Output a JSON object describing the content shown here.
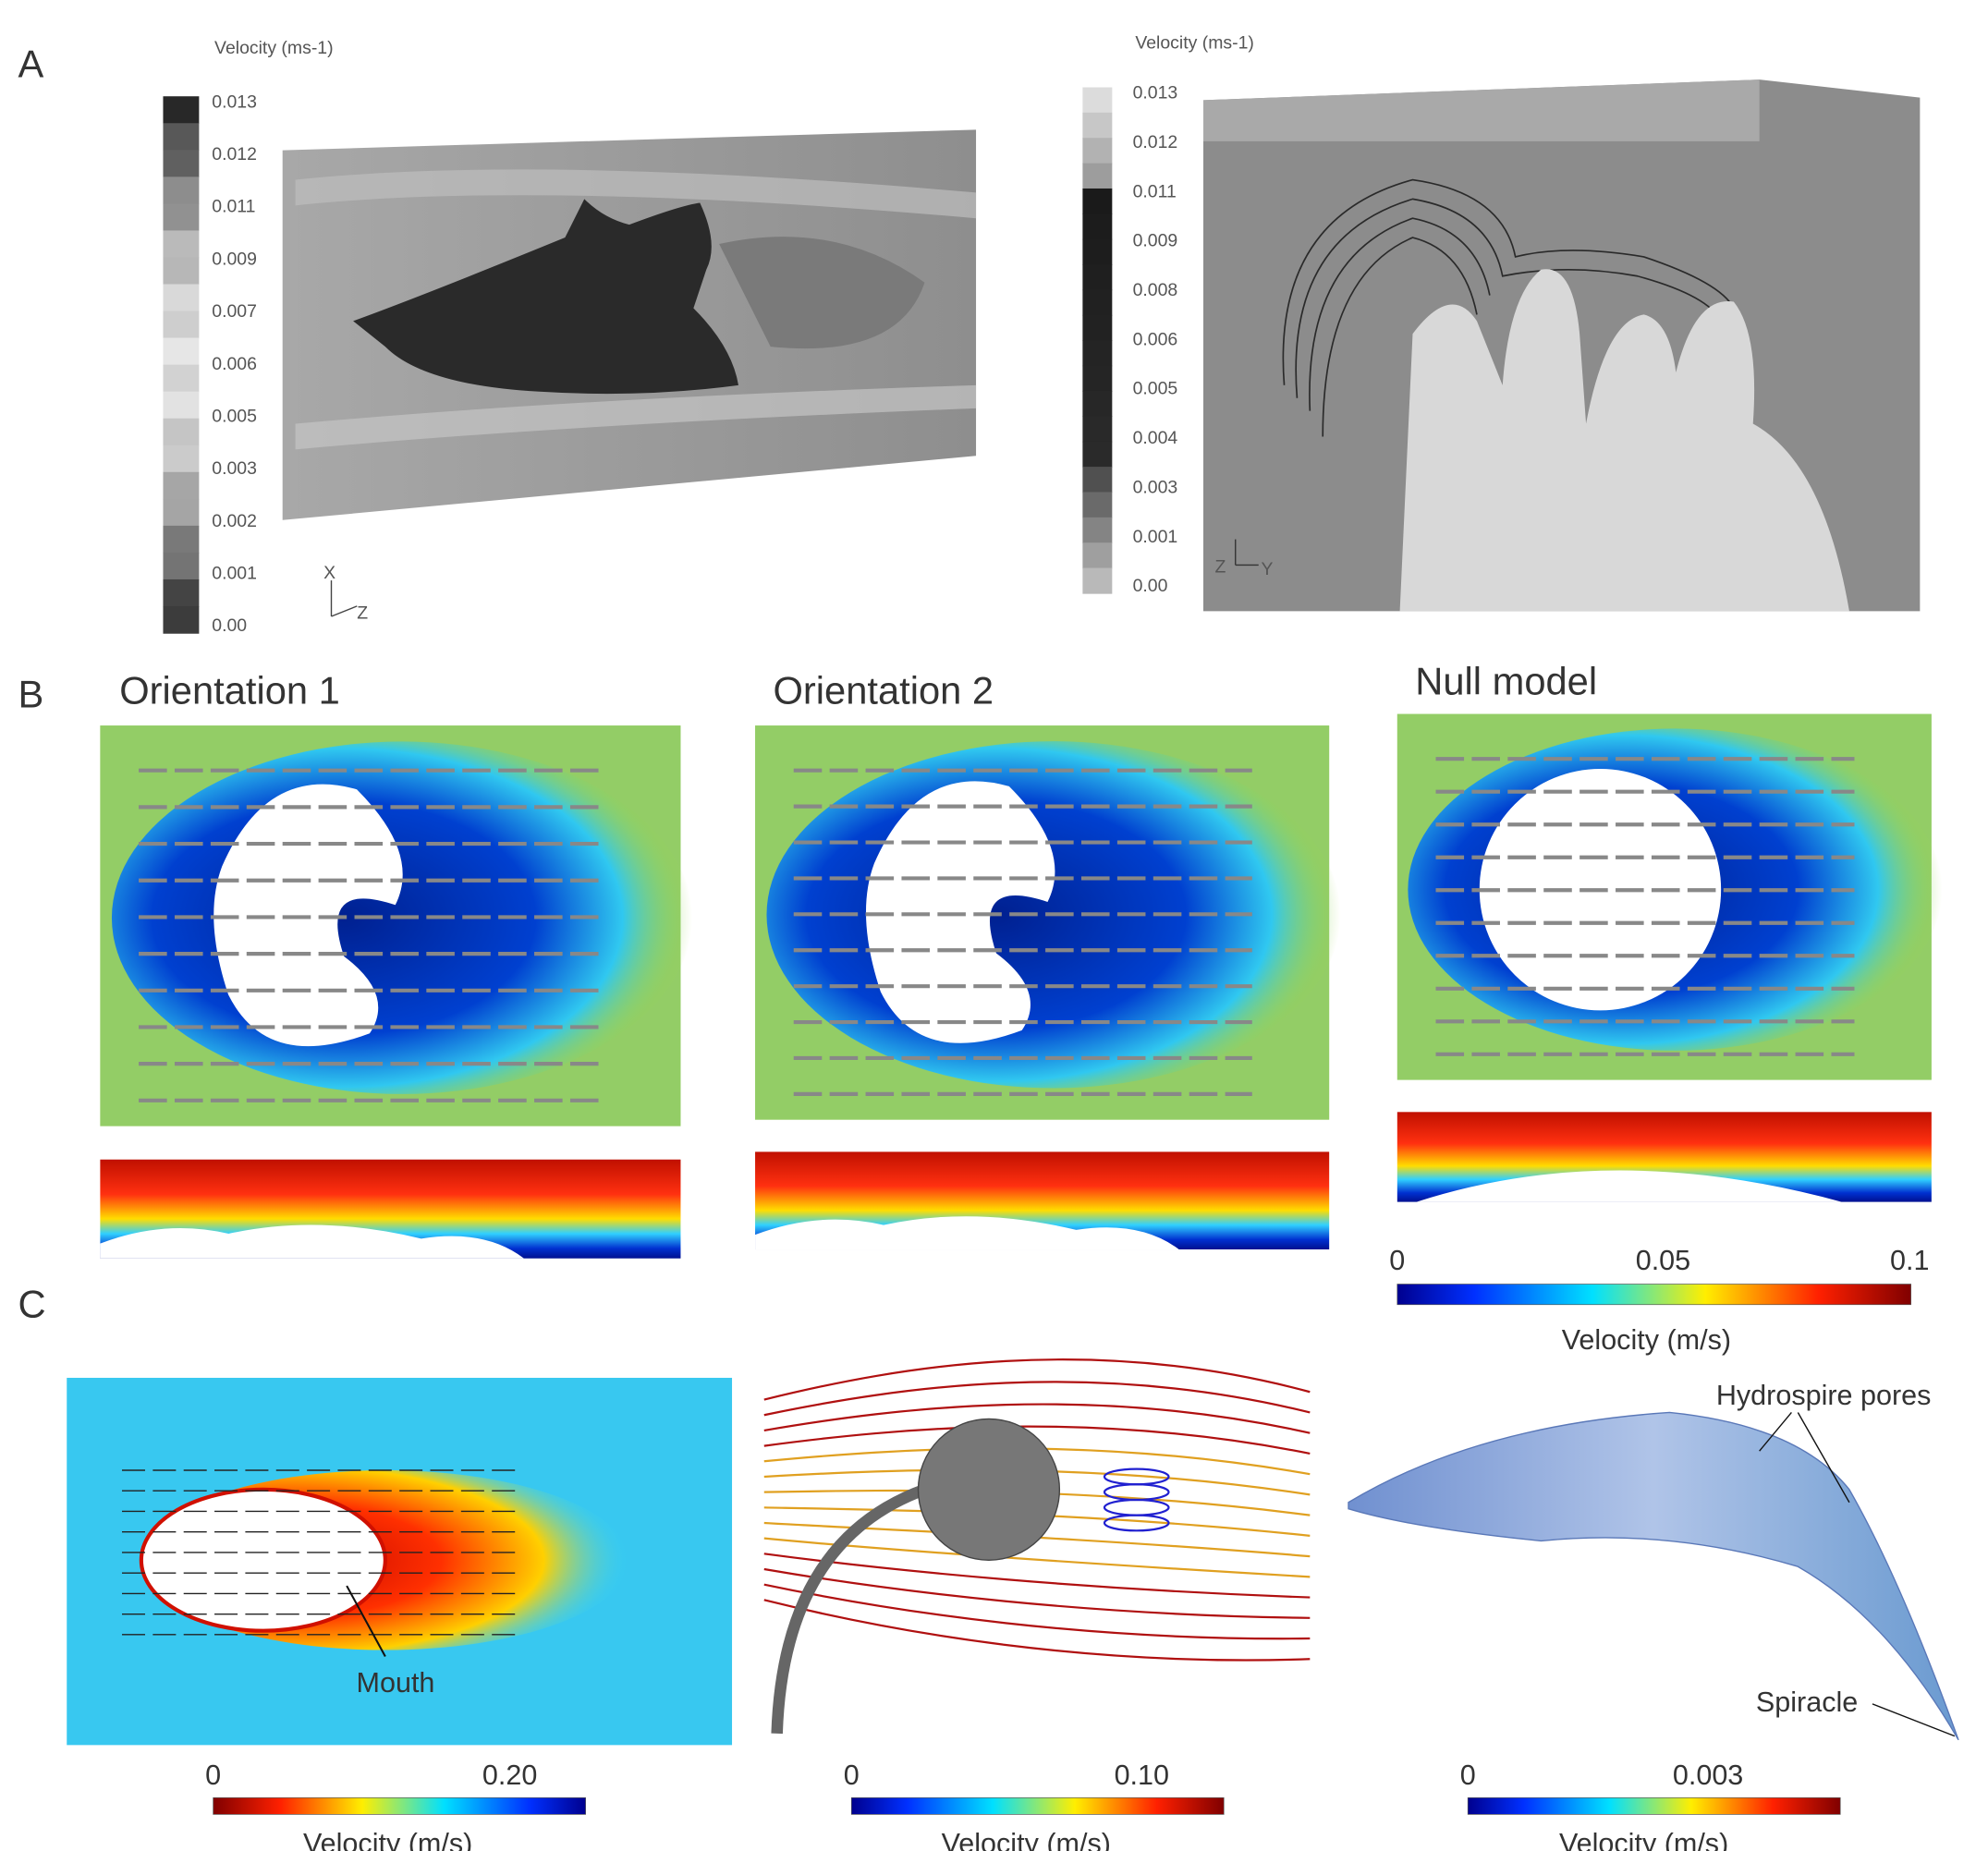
{
  "panel_a": {
    "label": "A",
    "left": {
      "title": "Velocity (ms-1)",
      "ticks": [
        "0.013",
        "0.012",
        "0.011",
        "0.009",
        "0.007",
        "0.006",
        "0.005",
        "0.003",
        "0.002",
        "0.001",
        "0.00"
      ],
      "axes": [
        "X",
        "Z"
      ]
    },
    "right": {
      "title": "Velocity (ms-1)",
      "ticks": [
        "0.013",
        "0.012",
        "0.011",
        "0.009",
        "0.008",
        "0.006",
        "0.005",
        "0.004",
        "0.003",
        "0.001",
        "0.00"
      ],
      "axes": [
        "Z",
        "Y"
      ]
    }
  },
  "panel_b": {
    "label": "B",
    "titles": [
      "Orientation 1",
      "Orientation 2",
      "Null model"
    ],
    "colorbar": {
      "ticks": [
        "0",
        "0.05",
        "0.1"
      ],
      "title": "Velocity (m/s)"
    }
  },
  "panel_c": {
    "label": "C",
    "annotations": {
      "mouth": "Mouth",
      "pores": "Hydrospire pores",
      "spiracle": "Spiracle"
    },
    "colorbars": [
      {
        "ticks": [
          "0",
          "0.20"
        ],
        "title": "Velocity (m/s)"
      },
      {
        "ticks": [
          "0",
          "0.10"
        ],
        "title": "Velocity (m/s)"
      },
      {
        "ticks": [
          "0",
          "0.003"
        ],
        "title": "Velocity (m/s)"
      }
    ]
  }
}
